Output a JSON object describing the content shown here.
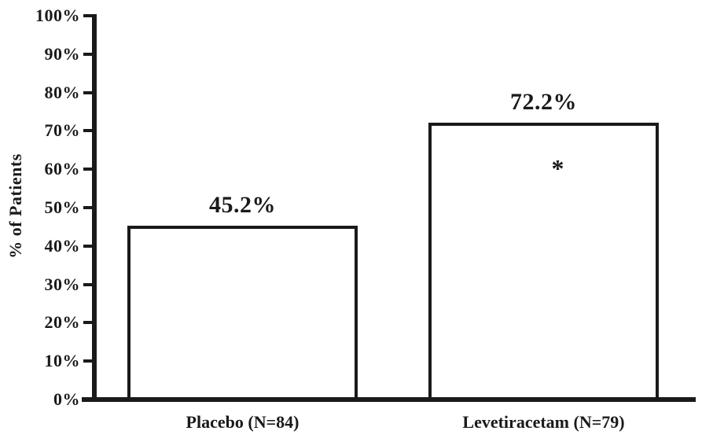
{
  "chart_data": {
    "type": "bar",
    "title": "",
    "xlabel": "",
    "ylabel": "% of Patients",
    "ylim": [
      0,
      100
    ],
    "ytick_values": [
      0,
      10,
      20,
      30,
      40,
      50,
      60,
      70,
      80,
      90,
      100
    ],
    "ytick_labels": [
      "0%",
      "10%",
      "20%",
      "30%",
      "40%",
      "50%",
      "60%",
      "70%",
      "80%",
      "90%",
      "100%"
    ],
    "categories": [
      "Placebo (N=84)",
      "Levetiracetam (N=79)"
    ],
    "values": [
      45.2,
      72.2
    ],
    "bars": [
      {
        "category": "Placebo (N=84)",
        "value": 45.2,
        "value_label": "45.2%",
        "annotation": ""
      },
      {
        "category": "Levetiracetam (N=79)",
        "value": 72.2,
        "value_label": "72.2%",
        "annotation": "*"
      }
    ],
    "grid": false,
    "legend": false,
    "bar_fill": "#ffffff",
    "line_color": "#1a1a1a",
    "background": "#ffffff"
  }
}
